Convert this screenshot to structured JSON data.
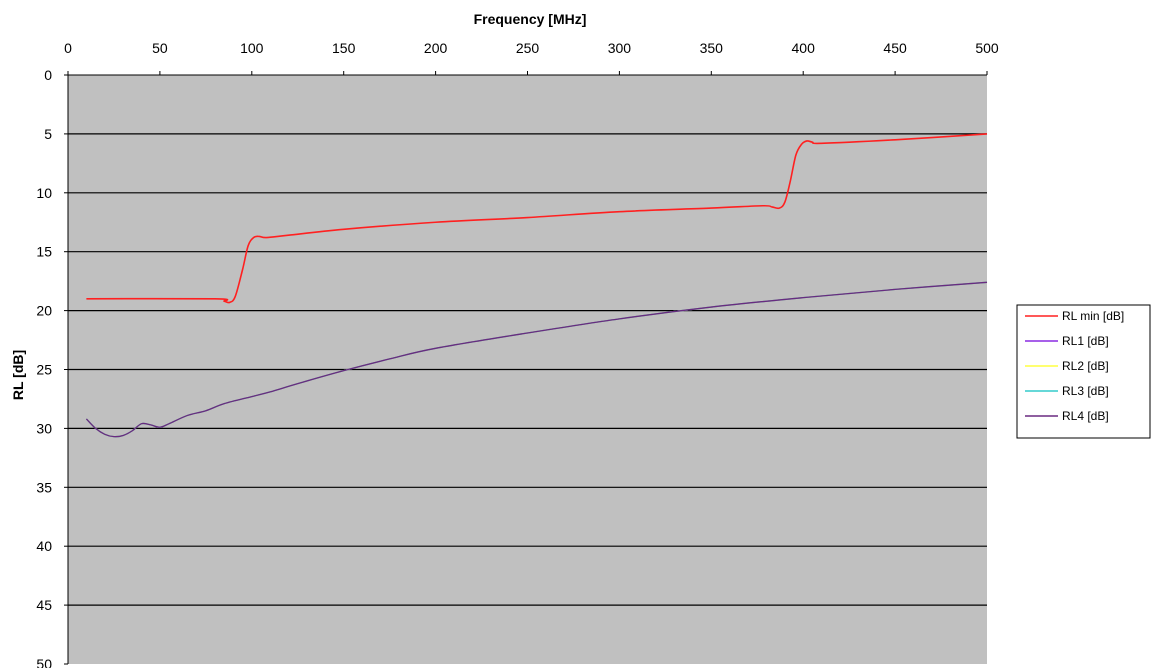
{
  "chart_data": {
    "type": "line",
    "xlabel": "Frequency [MHz]",
    "ylabel": "RL [dB]",
    "xlim": [
      0,
      500
    ],
    "ylim": [
      0,
      50
    ],
    "y_inverted": true,
    "x_axis_position": "top",
    "x_ticks": [
      0,
      50,
      100,
      150,
      200,
      250,
      300,
      350,
      400,
      450,
      500
    ],
    "y_ticks": [
      0,
      5,
      10,
      15,
      20,
      25,
      30,
      35,
      40,
      45,
      50
    ],
    "grid": "horizontal",
    "plot_background": "#c0c0c0",
    "legend_position": "right",
    "series": [
      {
        "name": "RL min [dB]",
        "color": "#ff2020",
        "points": [
          [
            10,
            19.0
          ],
          [
            80,
            19.0
          ],
          [
            85,
            19.2
          ],
          [
            88,
            19.3
          ],
          [
            91,
            18.8
          ],
          [
            95,
            16.5
          ],
          [
            98,
            14.5
          ],
          [
            101,
            13.8
          ],
          [
            104,
            13.7
          ],
          [
            108,
            13.8
          ],
          [
            120,
            13.6
          ],
          [
            150,
            13.1
          ],
          [
            200,
            12.5
          ],
          [
            250,
            12.1
          ],
          [
            300,
            11.6
          ],
          [
            350,
            11.3
          ],
          [
            378,
            11.1
          ],
          [
            383,
            11.2
          ],
          [
            387,
            11.3
          ],
          [
            390,
            10.8
          ],
          [
            393,
            9.0
          ],
          [
            396,
            6.8
          ],
          [
            399,
            5.9
          ],
          [
            402,
            5.6
          ],
          [
            405,
            5.7
          ],
          [
            410,
            5.8
          ],
          [
            450,
            5.5
          ],
          [
            500,
            5.0
          ]
        ]
      },
      {
        "name": "RL1 [dB]",
        "color": "#8a2be2",
        "points": [
          [
            10,
            29.2
          ],
          [
            15,
            30.0
          ],
          [
            20,
            30.5
          ],
          [
            25,
            30.7
          ],
          [
            30,
            30.6
          ],
          [
            35,
            30.2
          ],
          [
            40,
            29.6
          ],
          [
            45,
            29.7
          ],
          [
            50,
            29.9
          ],
          [
            55,
            29.6
          ],
          [
            65,
            28.9
          ],
          [
            75,
            28.5
          ],
          [
            85,
            27.9
          ],
          [
            100,
            27.3
          ],
          [
            110,
            26.9
          ],
          [
            125,
            26.2
          ],
          [
            150,
            25.1
          ],
          [
            175,
            24.1
          ],
          [
            200,
            23.2
          ],
          [
            250,
            21.9
          ],
          [
            300,
            20.7
          ],
          [
            350,
            19.7
          ],
          [
            400,
            18.9
          ],
          [
            450,
            18.2
          ],
          [
            500,
            17.6
          ]
        ]
      },
      {
        "name": "RL2 [dB]",
        "color": "#ffff40",
        "points": [
          [
            10,
            29.2
          ],
          [
            15,
            30.0
          ],
          [
            20,
            30.5
          ],
          [
            25,
            30.7
          ],
          [
            30,
            30.6
          ],
          [
            35,
            30.2
          ],
          [
            40,
            29.6
          ],
          [
            45,
            29.7
          ],
          [
            50,
            29.9
          ],
          [
            55,
            29.6
          ],
          [
            65,
            28.9
          ],
          [
            75,
            28.5
          ],
          [
            85,
            27.9
          ],
          [
            100,
            27.3
          ],
          [
            110,
            26.9
          ],
          [
            125,
            26.2
          ],
          [
            150,
            25.1
          ],
          [
            175,
            24.1
          ],
          [
            200,
            23.2
          ],
          [
            250,
            21.9
          ],
          [
            300,
            20.7
          ],
          [
            350,
            19.7
          ],
          [
            400,
            18.9
          ],
          [
            450,
            18.2
          ],
          [
            500,
            17.6
          ]
        ]
      },
      {
        "name": "RL3 [dB]",
        "color": "#33cccc",
        "points": [
          [
            10,
            29.2
          ],
          [
            15,
            30.0
          ],
          [
            20,
            30.5
          ],
          [
            25,
            30.7
          ],
          [
            30,
            30.6
          ],
          [
            35,
            30.2
          ],
          [
            40,
            29.6
          ],
          [
            45,
            29.7
          ],
          [
            50,
            29.9
          ],
          [
            55,
            29.6
          ],
          [
            65,
            28.9
          ],
          [
            75,
            28.5
          ],
          [
            85,
            27.9
          ],
          [
            100,
            27.3
          ],
          [
            110,
            26.9
          ],
          [
            125,
            26.2
          ],
          [
            150,
            25.1
          ],
          [
            175,
            24.1
          ],
          [
            200,
            23.2
          ],
          [
            250,
            21.9
          ],
          [
            300,
            20.7
          ],
          [
            350,
            19.7
          ],
          [
            400,
            18.9
          ],
          [
            450,
            18.2
          ],
          [
            500,
            17.6
          ]
        ]
      },
      {
        "name": "RL4 [dB]",
        "color": "#6a2a80",
        "points": [
          [
            10,
            29.2
          ],
          [
            15,
            30.0
          ],
          [
            20,
            30.5
          ],
          [
            25,
            30.7
          ],
          [
            30,
            30.6
          ],
          [
            35,
            30.2
          ],
          [
            40,
            29.6
          ],
          [
            45,
            29.7
          ],
          [
            50,
            29.9
          ],
          [
            55,
            29.6
          ],
          [
            65,
            28.9
          ],
          [
            75,
            28.5
          ],
          [
            85,
            27.9
          ],
          [
            100,
            27.3
          ],
          [
            110,
            26.9
          ],
          [
            125,
            26.2
          ],
          [
            150,
            25.1
          ],
          [
            175,
            24.1
          ],
          [
            200,
            23.2
          ],
          [
            250,
            21.9
          ],
          [
            300,
            20.7
          ],
          [
            350,
            19.7
          ],
          [
            400,
            18.9
          ],
          [
            450,
            18.2
          ],
          [
            500,
            17.6
          ]
        ]
      }
    ]
  }
}
